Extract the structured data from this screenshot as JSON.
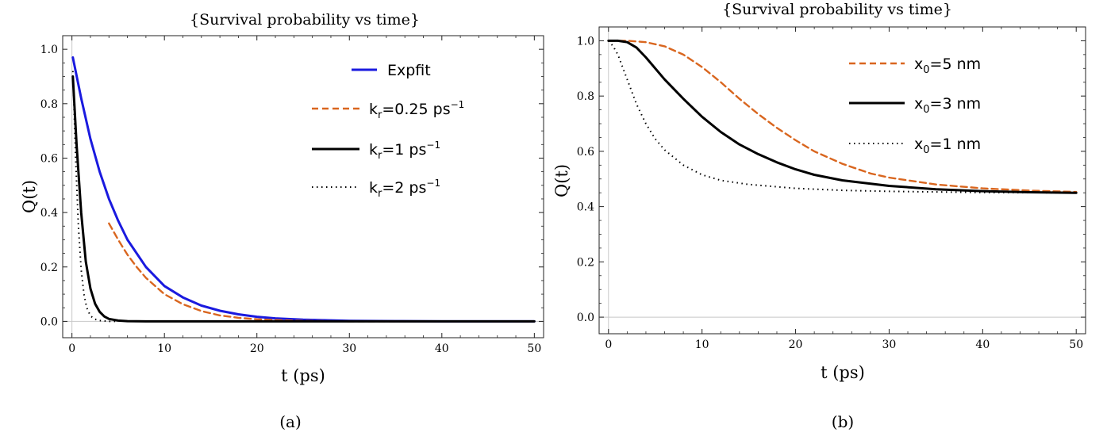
{
  "chart_data": [
    {
      "type": "line",
      "title": "{Survival probability vs time}",
      "xlabel": "t (ps)",
      "ylabel": "Q(t)",
      "caption": "(a)",
      "xlim": [
        -1,
        51
      ],
      "ylim": [
        -0.06,
        1.05
      ],
      "xticks": [
        0,
        10,
        20,
        30,
        40,
        50
      ],
      "yticks": [
        0.0,
        0.2,
        0.4,
        0.6,
        0.8,
        1.0
      ],
      "grid": false,
      "legend_position": "top-right",
      "series": [
        {
          "id": "s1",
          "legend": "Expfit",
          "color": "#1a1adf",
          "style": "solid",
          "width": 3,
          "x": [
            0.1,
            1,
            2,
            3,
            4,
            5,
            6,
            8,
            10,
            12,
            14,
            16,
            18,
            20,
            22,
            25,
            30,
            35,
            40,
            45,
            50
          ],
          "y": [
            0.97,
            0.82,
            0.67,
            0.55,
            0.45,
            0.37,
            0.3,
            0.2,
            0.13,
            0.088,
            0.058,
            0.039,
            0.026,
            0.017,
            0.011,
            0.006,
            0.002,
            0.001,
            0.0,
            0.0,
            0.0
          ]
        },
        {
          "id": "s2",
          "legend": {
            "base": "k",
            "sub": "r",
            "rest": "=0.25 ps",
            "sup": "−1"
          },
          "color": "#d9661f",
          "style": "dashed",
          "width": 2.4,
          "x": [
            4,
            5,
            6,
            7,
            8,
            10,
            12,
            14,
            16,
            18,
            20,
            22,
            25,
            30,
            35,
            40,
            45,
            50
          ],
          "y": [
            0.36,
            0.3,
            0.245,
            0.2,
            0.16,
            0.1,
            0.063,
            0.038,
            0.022,
            0.013,
            0.008,
            0.005,
            0.002,
            0.0,
            0.0,
            0.0,
            0.0,
            0.0
          ]
        },
        {
          "id": "s3",
          "legend": {
            "base": "k",
            "sub": "r",
            "rest": "=1 ps",
            "sup": "−1"
          },
          "color": "#000000",
          "style": "solid",
          "width": 3,
          "x": [
            0.1,
            0.5,
            1,
            1.5,
            2,
            2.5,
            3,
            3.5,
            4,
            5,
            6,
            8,
            10,
            20,
            30,
            40,
            50
          ],
          "y": [
            0.9,
            0.65,
            0.4,
            0.22,
            0.12,
            0.065,
            0.035,
            0.018,
            0.009,
            0.003,
            0.001,
            0.0,
            0.0,
            0.0,
            0.0,
            0.0,
            0.0
          ]
        },
        {
          "id": "s4",
          "legend": {
            "base": "k",
            "sub": "r",
            "rest": "=2 ps",
            "sup": "−1"
          },
          "color": "#000000",
          "style": "dotted",
          "width": 2,
          "x": [
            0.1,
            0.4,
            0.7,
            1,
            1.3,
            1.6,
            2,
            2.5,
            3,
            4,
            5
          ],
          "y": [
            0.92,
            0.6,
            0.35,
            0.19,
            0.1,
            0.05,
            0.02,
            0.008,
            0.003,
            0.0,
            0.0
          ]
        }
      ]
    },
    {
      "type": "line",
      "title": "{Survival probability vs time}",
      "xlabel": "t (ps)",
      "ylabel": "Q(t)",
      "caption": "(b)",
      "xlim": [
        -1,
        51
      ],
      "ylim": [
        -0.06,
        1.05
      ],
      "xticks": [
        0,
        10,
        20,
        30,
        40,
        50
      ],
      "yticks": [
        0.0,
        0.2,
        0.4,
        0.6,
        0.8,
        1.0
      ],
      "grid": false,
      "legend_position": "top-right",
      "series": [
        {
          "id": "s1",
          "legend": {
            "base": "x",
            "sub": "0",
            "rest": "=5 nm",
            "sup": ""
          },
          "color": "#d9661f",
          "style": "dashed",
          "width": 2.4,
          "x": [
            0,
            2,
            4,
            6,
            8,
            10,
            12,
            14,
            16,
            18,
            20,
            22,
            25,
            28,
            30,
            35,
            40,
            45,
            50
          ],
          "y": [
            1.0,
            1.0,
            0.995,
            0.98,
            0.95,
            0.905,
            0.85,
            0.79,
            0.735,
            0.685,
            0.64,
            0.6,
            0.555,
            0.52,
            0.505,
            0.48,
            0.466,
            0.458,
            0.453
          ]
        },
        {
          "id": "s2",
          "legend": {
            "base": "x",
            "sub": "0",
            "rest": "=3 nm",
            "sup": ""
          },
          "color": "#000000",
          "style": "solid",
          "width": 3,
          "x": [
            0,
            1,
            2,
            3,
            4,
            6,
            8,
            10,
            12,
            14,
            16,
            18,
            20,
            22,
            25,
            30,
            35,
            40,
            45,
            50
          ],
          "y": [
            1.0,
            1.0,
            0.995,
            0.975,
            0.94,
            0.86,
            0.79,
            0.725,
            0.67,
            0.625,
            0.59,
            0.56,
            0.535,
            0.515,
            0.495,
            0.475,
            0.463,
            0.456,
            0.452,
            0.45
          ]
        },
        {
          "id": "s3",
          "legend": {
            "base": "x",
            "sub": "0",
            "rest": "=1 nm",
            "sup": ""
          },
          "color": "#000000",
          "style": "dotted",
          "width": 2,
          "x": [
            0,
            0.5,
            1,
            2,
            3,
            4,
            5,
            6,
            8,
            10,
            12,
            15,
            20,
            25,
            30,
            40,
            50
          ],
          "y": [
            1.0,
            0.98,
            0.95,
            0.86,
            0.77,
            0.7,
            0.645,
            0.605,
            0.55,
            0.515,
            0.495,
            0.48,
            0.466,
            0.459,
            0.455,
            0.451,
            0.45
          ]
        }
      ]
    }
  ]
}
